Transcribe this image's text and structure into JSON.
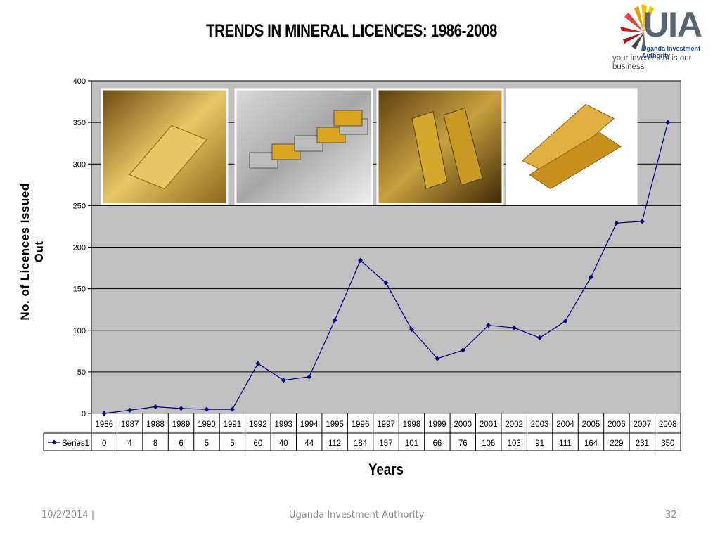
{
  "slide": {
    "title": "TRENDS IN MINERAL LICENCES: 1986-2008",
    "logo_text": "UIA",
    "logo_subtitle": "Uganda Investment Authority",
    "logo_tagline": "your investment is our business",
    "photo_icons": [
      "gold-bar-photo-icon",
      "silver-gold-bars-photo-icon",
      "gold-bars-stack-photo-icon",
      "gold-bars-white-photo-icon"
    ]
  },
  "footer": {
    "date": "10/2/2014  |",
    "center": "Uganda Investment Authority",
    "page": "32"
  },
  "chart_data": {
    "type": "line",
    "title": "",
    "xlabel": "Years",
    "ylabel": "No. of Licences Issued Out",
    "ylim": [
      0,
      400
    ],
    "yticks": [
      0,
      50,
      100,
      150,
      200,
      250,
      300,
      350,
      400
    ],
    "grid": true,
    "legend": "data-table-left",
    "categories": [
      "1986",
      "1987",
      "1988",
      "1989",
      "1990",
      "1991",
      "1992",
      "1993",
      "1994",
      "1995",
      "1996",
      "1997",
      "1998",
      "1999",
      "2000",
      "2001",
      "2002",
      "2003",
      "2004",
      "2005",
      "2006",
      "2007",
      "2008"
    ],
    "series": [
      {
        "name": "Series1",
        "color": "#000080",
        "values": [
          0,
          4,
          8,
          6,
          5,
          5,
          60,
          40,
          44,
          112,
          184,
          157,
          101,
          66,
          76,
          106,
          103,
          91,
          111,
          164,
          229,
          231,
          350
        ]
      }
    ],
    "plot_background": "#c0c0c0"
  }
}
